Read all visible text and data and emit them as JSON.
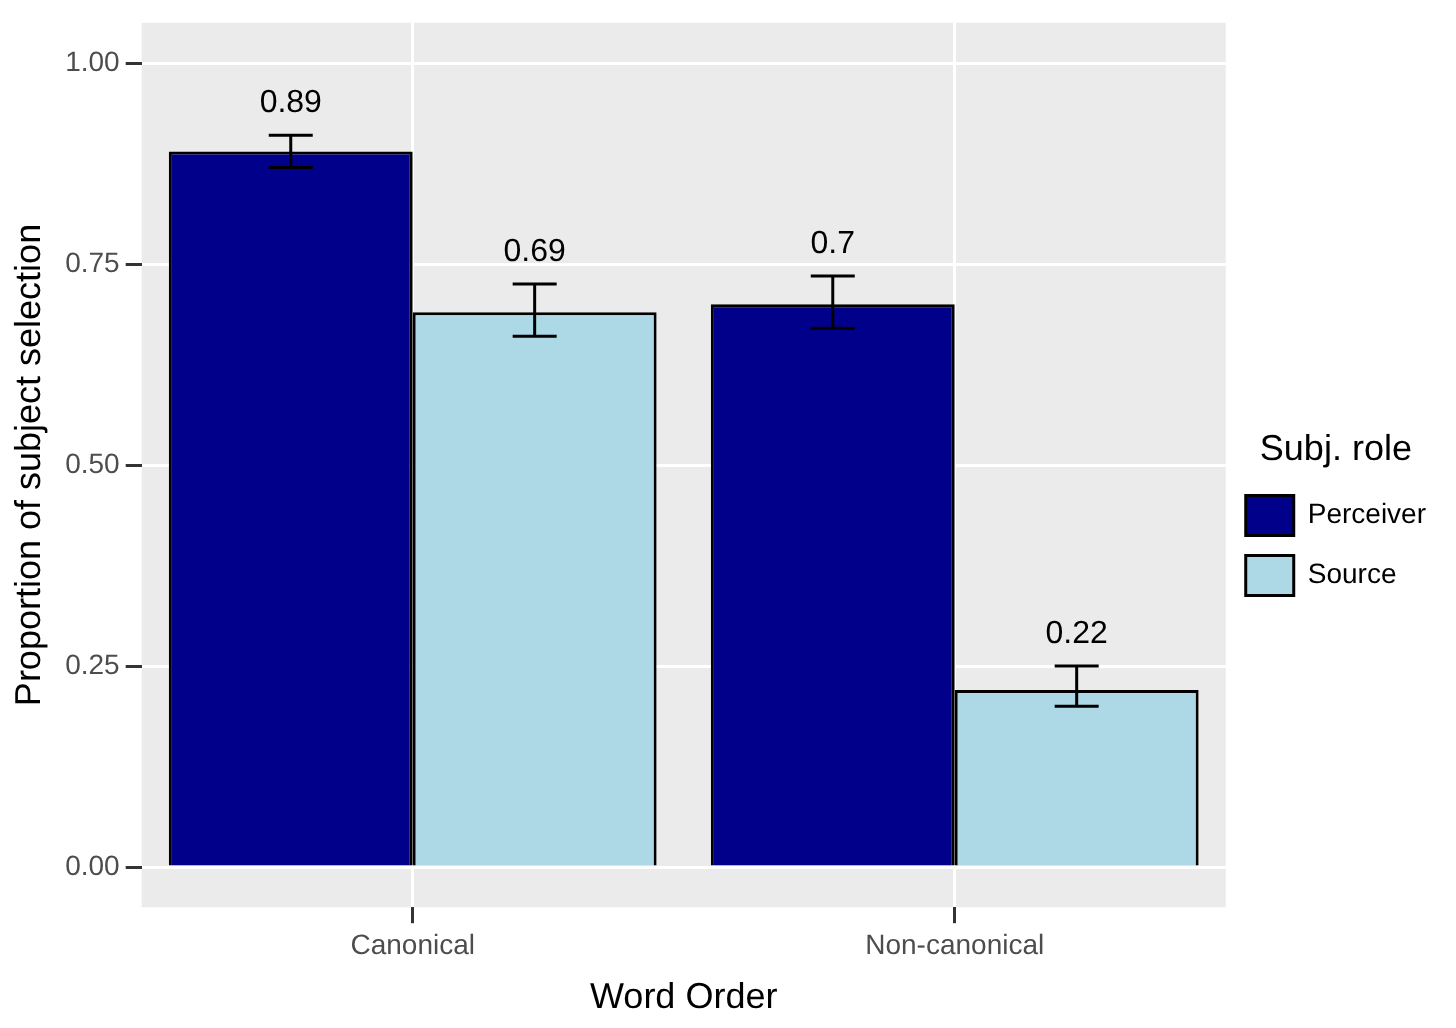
{
  "chart_data": {
    "type": "bar",
    "xlabel": "Word Order",
    "ylabel": "Proportion of subject selection",
    "legend_title": "Subj. role",
    "categories": [
      "Canonical",
      "Non-canonical"
    ],
    "series": [
      {
        "name": "Perceiver",
        "color": "#00008b",
        "values": [
          0.89,
          0.7
        ],
        "errors": [
          [
            0.87,
            0.91
          ],
          [
            0.67,
            0.735
          ]
        ]
      },
      {
        "name": "Source",
        "color": "#add8e6",
        "values": [
          0.69,
          0.22
        ],
        "errors": [
          [
            0.66,
            0.725
          ],
          [
            0.2,
            0.25
          ]
        ]
      }
    ],
    "ylim": [
      -0.05,
      1.05
    ],
    "yticks": [
      {
        "value": 0,
        "label": "0.00"
      },
      {
        "value": 0.25,
        "label": "0.25"
      },
      {
        "value": 0.5,
        "label": "0.50"
      },
      {
        "value": 0.75,
        "label": "0.75"
      },
      {
        "value": 1,
        "label": "1.00"
      }
    ],
    "grid": true,
    "legend": "right",
    "data_labels": true
  }
}
